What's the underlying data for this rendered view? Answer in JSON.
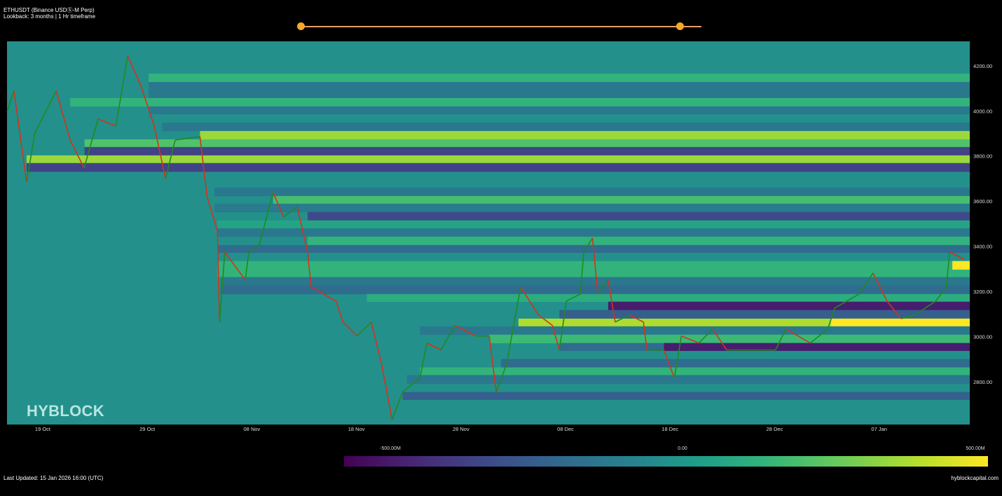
{
  "header": {
    "title": "ETHUSDT (Binance USDⓈ-M Perp)",
    "subtitle": "Lookback: 3 months | 1 Hr timeframe"
  },
  "range_slider": {
    "start": 0.0,
    "end": 0.946,
    "color": "#f7a826"
  },
  "watermark": "HYBLOCK",
  "footer": {
    "last_updated": "Last Updated: 15 Jan 2026 16:00 (UTC)",
    "site": "hyblockcapital.com"
  },
  "colorbar": {
    "min_label": "-500.00M",
    "mid_label": "0.00",
    "max_label": "500.00M",
    "colormap": "viridis",
    "range": [
      -500,
      500
    ]
  },
  "chart_data": {
    "type": "heatmap",
    "x_range": [
      "2025-10-15 14:00",
      "2026-01-15 16:00"
    ],
    "ylim": [
      2611,
      4308
    ],
    "x_ticks": [
      {
        "date": "2025-10-19",
        "label": "19 Oct"
      },
      {
        "date": "2025-10-29",
        "label": "29 Oct"
      },
      {
        "date": "2025-11-08",
        "label": "08 Nov"
      },
      {
        "date": "2025-11-18",
        "label": "18 Nov"
      },
      {
        "date": "2025-11-28",
        "label": "28 Nov"
      },
      {
        "date": "2025-12-08",
        "label": "08 Dec"
      },
      {
        "date": "2025-12-18",
        "label": "18 Dec"
      },
      {
        "date": "2025-12-28",
        "label": "28 Dec"
      },
      {
        "date": "2026-01-07",
        "label": "07 Jan"
      }
    ],
    "y_ticks": [
      {
        "value": 2800,
        "label": "2800.00"
      },
      {
        "value": 3000,
        "label": "3000.00"
      },
      {
        "value": 3200,
        "label": "3200.00"
      },
      {
        "value": 3400,
        "label": "3400.00"
      },
      {
        "value": 3600,
        "label": "3600.00"
      },
      {
        "value": 3800,
        "label": "3800.00"
      },
      {
        "value": 4000,
        "label": "4000.00"
      },
      {
        "value": 4200,
        "label": "4200.00"
      }
    ],
    "background_value": 0,
    "bands": [
      {
        "low": 4128,
        "high": 4165,
        "value": 150,
        "from": "2025-10-29 03:00"
      },
      {
        "low": 4057,
        "high": 4128,
        "value": -100,
        "from": "2025-10-29 03:00"
      },
      {
        "low": 4020,
        "high": 4057,
        "value": 150,
        "from": "2025-10-21 15:00"
      },
      {
        "low": 3986,
        "high": 4020,
        "value": -100,
        "from": "2025-10-29 03:00"
      },
      {
        "low": 3911,
        "high": 3948,
        "value": -100,
        "from": "2025-10-30 10:00"
      },
      {
        "low": 3874,
        "high": 3911,
        "value": 350,
        "from": "2025-11-03 01:00"
      },
      {
        "low": 3840,
        "high": 3874,
        "value": 220,
        "from": "2025-10-23 00:00"
      },
      {
        "low": 3803,
        "high": 3840,
        "value": -300,
        "from": "2025-10-23 00:00"
      },
      {
        "low": 3769,
        "high": 3803,
        "value": 350,
        "from": "2025-10-17 11:00"
      },
      {
        "low": 3731,
        "high": 3769,
        "value": -300,
        "from": "2025-10-17 11:00"
      },
      {
        "low": 3623,
        "high": 3660,
        "value": -100,
        "from": "2025-11-04 10:00"
      },
      {
        "low": 3589,
        "high": 3623,
        "value": 200,
        "from": "2025-11-10 01:00"
      },
      {
        "low": 3552,
        "high": 3589,
        "value": -80,
        "from": "2025-11-04 10:00"
      },
      {
        "low": 3515,
        "high": 3552,
        "value": -280,
        "from": "2025-11-13 08:00"
      },
      {
        "low": 3480,
        "high": 3515,
        "value": 80,
        "from": "2025-11-04 17:00"
      },
      {
        "low": 3443,
        "high": 3480,
        "value": -100,
        "from": "2025-11-04 17:00"
      },
      {
        "low": 3406,
        "high": 3443,
        "value": 150,
        "from": "2025-11-13 08:00"
      },
      {
        "low": 3372,
        "high": 3406,
        "value": -150,
        "from": "2025-11-04 17:00"
      },
      {
        "low": 3264,
        "high": 3335,
        "value": 150,
        "from": "2025-11-04 17:00"
      },
      {
        "low": 3226,
        "high": 3264,
        "value": -100,
        "from": "2025-11-05 00:00"
      },
      {
        "low": 3189,
        "high": 3226,
        "value": -150,
        "from": "2025-11-05 00:00"
      },
      {
        "low": 3155,
        "high": 3189,
        "value": 120,
        "from": "2025-11-19 00:00"
      },
      {
        "low": 3118,
        "high": 3155,
        "value": -420,
        "from": "2025-12-12 02:00"
      },
      {
        "low": 3080,
        "high": 3118,
        "value": -200,
        "from": "2025-12-07 10:00"
      },
      {
        "low": 3046,
        "high": 3080,
        "value": 380,
        "from": "2025-12-03 12:00"
      },
      {
        "low": 3046,
        "high": 3080,
        "value": 500,
        "from": "2026-01-02 10:00"
      },
      {
        "low": 3009,
        "high": 3046,
        "value": -100,
        "from": "2025-11-24 02:00"
      },
      {
        "low": 2972,
        "high": 3009,
        "value": 180,
        "from": "2025-11-30 17:00"
      },
      {
        "low": 2938,
        "high": 2972,
        "value": -150,
        "from": "2025-12-07 10:00"
      },
      {
        "low": 2938,
        "high": 2972,
        "value": -420,
        "from": "2025-12-17 10:00"
      },
      {
        "low": 2864,
        "high": 2901,
        "value": -150,
        "from": "2025-12-01 20:00"
      },
      {
        "low": 2830,
        "high": 2864,
        "value": 150,
        "from": "2025-11-24 02:00"
      },
      {
        "low": 2792,
        "high": 2830,
        "value": -100,
        "from": "2025-11-22 20:00"
      },
      {
        "low": 2721,
        "high": 2755,
        "value": -200,
        "from": "2025-11-22 10:00"
      },
      {
        "low": 3298,
        "high": 3335,
        "value": 500,
        "from": "2026-01-14 00:00"
      }
    ],
    "price": [
      [
        "2025-10-15 14:00",
        3995
      ],
      [
        "2025-10-16 06:00",
        4088
      ],
      [
        "2025-10-17 11:00",
        3685
      ],
      [
        "2025-10-18 06:00",
        3902
      ],
      [
        "2025-10-20 07:00",
        4088
      ],
      [
        "2025-10-21 15:00",
        3871
      ],
      [
        "2025-10-22 23:00",
        3747
      ],
      [
        "2025-10-24 07:00",
        3964
      ],
      [
        "2025-10-26 00:00",
        3933
      ],
      [
        "2025-10-27 03:00",
        4243
      ],
      [
        "2025-10-28 08:00",
        4119
      ],
      [
        "2025-10-29 16:00",
        3933
      ],
      [
        "2025-10-30 18:00",
        3700
      ],
      [
        "2025-10-31 16:00",
        3871
      ],
      [
        "2025-11-03 01:00",
        3886
      ],
      [
        "2025-11-03 17:00",
        3623
      ],
      [
        "2025-11-04 17:00",
        3468
      ],
      [
        "2025-11-04 22:00",
        3065
      ],
      [
        "2025-11-05 10:00",
        3375
      ],
      [
        "2025-11-07 09:00",
        3251
      ],
      [
        "2025-11-07 17:00",
        3375
      ],
      [
        "2025-11-08 17:00",
        3406
      ],
      [
        "2025-11-10 01:00",
        3638
      ],
      [
        "2025-11-11 01:00",
        3530
      ],
      [
        "2025-11-12 08:00",
        3576
      ],
      [
        "2025-11-13 08:00",
        3375
      ],
      [
        "2025-11-13 16:00",
        3220
      ],
      [
        "2025-11-16 01:00",
        3158
      ],
      [
        "2025-11-16 17:00",
        3065
      ],
      [
        "2025-11-18 02:00",
        3003
      ],
      [
        "2025-11-19 10:00",
        3065
      ],
      [
        "2025-11-20 10:00",
        2879
      ],
      [
        "2025-11-21 10:00",
        2631
      ],
      [
        "2025-11-22 10:00",
        2755
      ],
      [
        "2025-11-24 02:00",
        2817
      ],
      [
        "2025-11-24 18:00",
        2972
      ],
      [
        "2025-11-26 02:00",
        2941
      ],
      [
        "2025-11-27 10:00",
        3050
      ],
      [
        "2025-11-29 10:00",
        3003
      ],
      [
        "2025-11-30 17:00",
        3003
      ],
      [
        "2025-12-01 09:00",
        2755
      ],
      [
        "2025-12-02 09:00",
        2879
      ],
      [
        "2025-12-03 17:00",
        3220
      ],
      [
        "2025-12-05 10:00",
        3096
      ],
      [
        "2025-12-06 18:00",
        3050
      ],
      [
        "2025-12-07 10:00",
        2941
      ],
      [
        "2025-12-08 02:00",
        3158
      ],
      [
        "2025-12-09 10:00",
        3189
      ],
      [
        "2025-12-09 18:00",
        3375
      ],
      [
        "2025-12-10 14:00",
        3437
      ],
      [
        "2025-12-11 02:00",
        3189
      ],
      [
        "2025-12-12 02:00",
        3251
      ],
      [
        "2025-12-12 18:00",
        3065
      ],
      [
        "2025-12-14 03:00",
        3096
      ],
      [
        "2025-12-15 11:00",
        3065
      ],
      [
        "2025-12-15 19:00",
        2941
      ],
      [
        "2025-12-17 10:00",
        2941
      ],
      [
        "2025-12-18 10:00",
        2817
      ],
      [
        "2025-12-19 02:00",
        3003
      ],
      [
        "2025-12-20 18:00",
        2972
      ],
      [
        "2025-12-22 02:00",
        3034
      ],
      [
        "2025-12-23 10:00",
        2941
      ],
      [
        "2025-12-26 02:00",
        2941
      ],
      [
        "2025-12-28 02:00",
        2941
      ],
      [
        "2025-12-29 02:00",
        3034
      ],
      [
        "2025-12-31 10:00",
        2972
      ],
      [
        "2026-01-02 02:00",
        3034
      ],
      [
        "2026-01-02 18:00",
        3127
      ],
      [
        "2026-01-05 02:00",
        3189
      ],
      [
        "2026-01-06 10:00",
        3282
      ],
      [
        "2026-01-07 18:00",
        3158
      ],
      [
        "2026-01-09 02:00",
        3080
      ],
      [
        "2026-01-10 10:00",
        3096
      ],
      [
        "2026-01-12 10:00",
        3158
      ],
      [
        "2026-01-13 10:00",
        3220
      ],
      [
        "2026-01-13 18:00",
        3375
      ],
      [
        "2026-01-15 02:00",
        3344
      ]
    ],
    "up_color": "#1f8a1f",
    "down_color": "#d4321c"
  }
}
